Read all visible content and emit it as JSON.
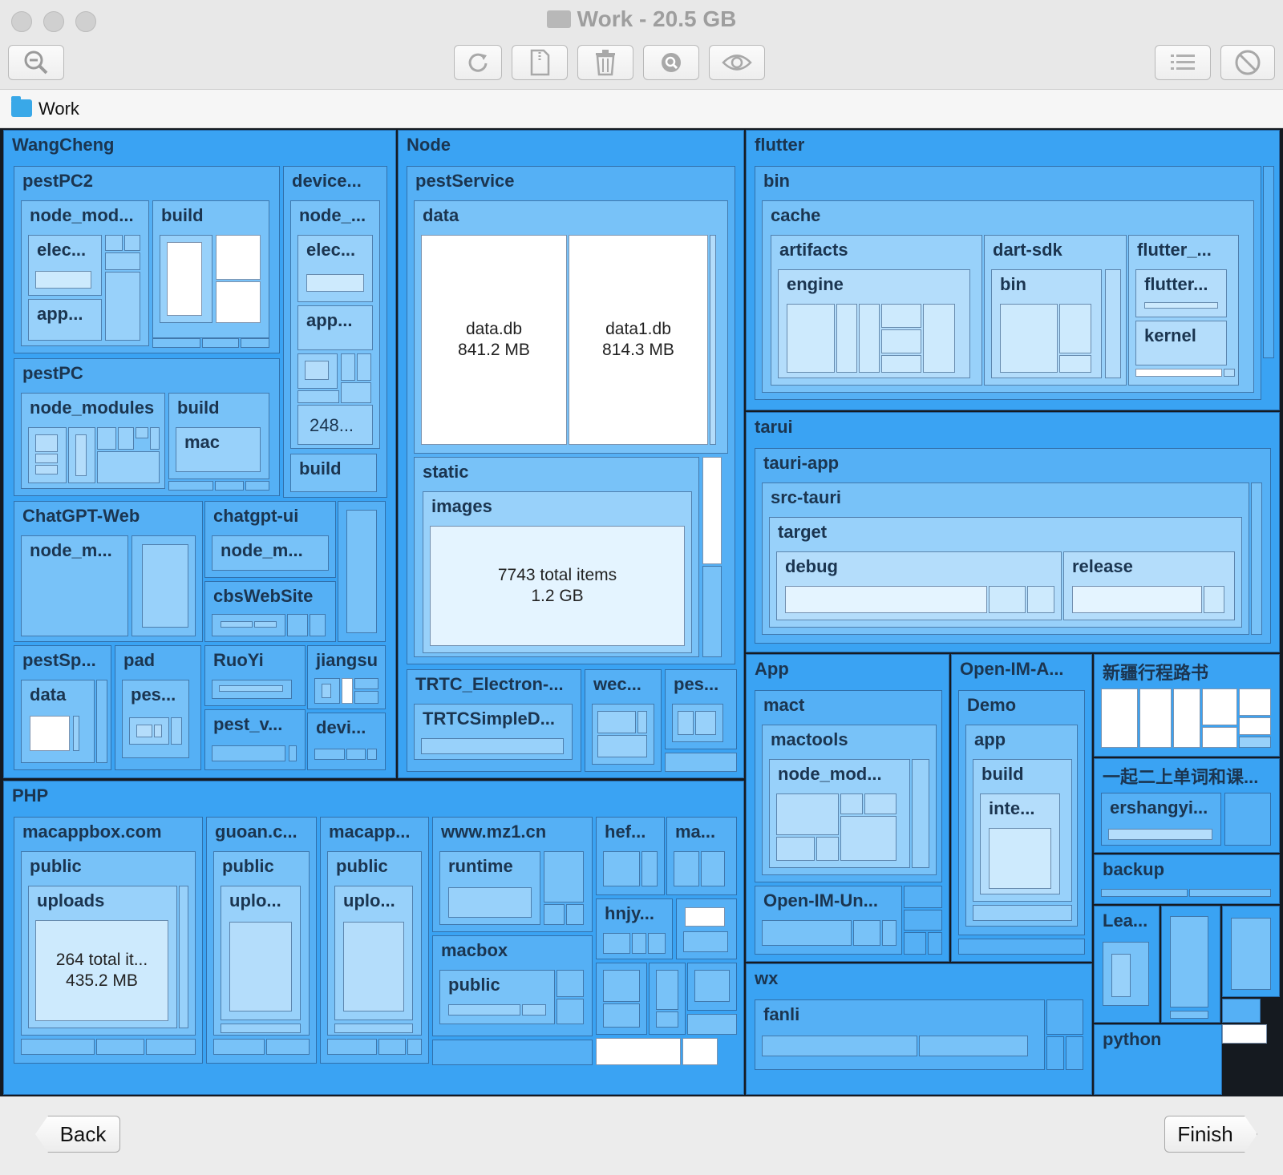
{
  "window": {
    "title": "Work - 20.5 GB"
  },
  "toolbar": {
    "zoom_icon": "zoom-out-icon",
    "refresh_icon": "refresh-icon",
    "archive_icon": "archive-icon",
    "trash_icon": "trash-icon",
    "reveal_icon": "reveal-icon",
    "quicklook_icon": "eye-icon",
    "list_icon": "list-icon",
    "exclude_icon": "prohibited-icon"
  },
  "path": {
    "current": "Work"
  },
  "treemap": {
    "wangcheng": "WangCheng",
    "pestpc2": "pestPC2",
    "pestpc2_node_mod": "node_mod...",
    "pestpc2_elec": "elec...",
    "pestpc2_app": "app...",
    "pestpc2_build": "build",
    "device": "device...",
    "device_node": "node_...",
    "device_elec": "elec...",
    "device_app": "app...",
    "device_248": "248...",
    "device_build": "build",
    "pestpc": "pestPC",
    "pestpc_node_modules": "node_modules",
    "pestpc_build": "build",
    "pestpc_mac": "mac",
    "chatgpt_web": "ChatGPT-Web",
    "chatgpt_web_node": "node_m...",
    "chatgpt_ui": "chatgpt-ui",
    "chatgpt_ui_node": "node_m...",
    "cbswebsite": "cbsWebSite",
    "pestsp": "pestSp...",
    "pestsp_data": "data",
    "pad": "pad",
    "pad_pes": "pes...",
    "ruoyi": "RuoYi",
    "jiangsu": "jiangsu",
    "pest_v": "pest_v...",
    "devi": "devi...",
    "node": "Node",
    "pestservice": "pestService",
    "ps_data": "data",
    "data_db_name": "data.db",
    "data_db_size": "841.2 MB",
    "data1_db_name": "data1.db",
    "data1_db_size": "814.3 MB",
    "static": "static",
    "images": "images",
    "images_items": "7743 total items",
    "images_size": "1.2 GB",
    "trtc": "TRTC_Electron-...",
    "trtc_simple": "TRTCSimpleD...",
    "wec": "wec...",
    "pes": "pes...",
    "flutter": "flutter",
    "fl_bin": "bin",
    "cache": "cache",
    "artifacts": "artifacts",
    "engine": "engine",
    "dart_sdk": "dart-sdk",
    "dart_bin": "bin",
    "flutter_sub": "flutter_...",
    "flutter_sub2": "flutter...",
    "kernel": "kernel",
    "tarui": "tarui",
    "tauri_app": "tauri-app",
    "src_tauri": "src-tauri",
    "target": "target",
    "debug": "debug",
    "release": "release",
    "app": "App",
    "mact": "mact",
    "mactools": "mactools",
    "mactools_node": "node_mod...",
    "open_im_un": "Open-IM-Un...",
    "open_im_a": "Open-IM-A...",
    "demo": "Demo",
    "demo_app": "app",
    "demo_build": "build",
    "inte": "inte...",
    "xinjiang": "新疆行程路书",
    "yiqi": "一起二上单词和课...",
    "ershangyi": "ershangyi...",
    "backup": "backup",
    "lea": "Lea...",
    "python": "python",
    "wx": "wx",
    "fanli": "fanli",
    "php": "PHP",
    "macappbox": "macappbox.com",
    "mab_public": "public",
    "uploads": "uploads",
    "uploads_items": "264 total it...",
    "uploads_size": "435.2 MB",
    "guoan": "guoan.c...",
    "guoan_public": "public",
    "guoan_uplo": "uplo...",
    "macapp": "macapp...",
    "macapp_public": "public",
    "macapp_uplo": "uplo...",
    "mz1": "www.mz1.cn",
    "runtime": "runtime",
    "macbox": "macbox",
    "macbox_public": "public",
    "hef": "hef...",
    "ma": "ma...",
    "hnjy": "hnjy..."
  },
  "footer": {
    "back_label": "Back",
    "finish_label": "Finish"
  },
  "colors": {
    "level0": "#3aa3f3",
    "level2": "#78c2f8",
    "level4": "#b4ddfb",
    "file_white": "#ffffff"
  }
}
